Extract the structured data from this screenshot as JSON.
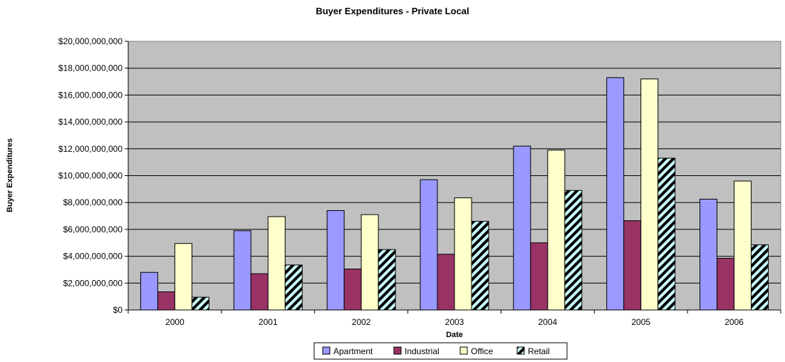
{
  "chart_data": {
    "type": "bar",
    "title": "Buyer Expenditures - Private Local",
    "xlabel": "Date",
    "ylabel": "Buyer Expenditures",
    "categories": [
      "2000",
      "2001",
      "2002",
      "2003",
      "2004",
      "2005",
      "2006"
    ],
    "ylim": [
      0,
      20000000000
    ],
    "yticks": [
      0,
      2000000000,
      4000000000,
      6000000000,
      8000000000,
      10000000000,
      12000000000,
      14000000000,
      16000000000,
      18000000000,
      20000000000
    ],
    "ytick_labels": [
      "$0",
      "$2,000,000,000",
      "$4,000,000,000",
      "$6,000,000,000",
      "$8,000,000,000",
      "$10,000,000,000",
      "$12,000,000,000",
      "$14,000,000,000",
      "$16,000,000,000",
      "$18,000,000,000",
      "$20,000,000,000"
    ],
    "grid": true,
    "legend_position": "bottom",
    "series": [
      {
        "name": "Apartment",
        "color": "#9999ff",
        "pattern": "solid",
        "values": [
          2800000000,
          5900000000,
          7400000000,
          9700000000,
          12200000000,
          17300000000,
          8250000000
        ]
      },
      {
        "name": "Industrial",
        "color": "#993366",
        "pattern": "solid",
        "values": [
          1350000000,
          2700000000,
          3050000000,
          4150000000,
          5000000000,
          6650000000,
          3850000000
        ]
      },
      {
        "name": "Office",
        "color": "#ffffcc",
        "pattern": "solid",
        "values": [
          4950000000,
          6950000000,
          7100000000,
          8350000000,
          11900000000,
          17200000000,
          9600000000
        ]
      },
      {
        "name": "Retail",
        "color": "#ccffff",
        "pattern": "diagonal-stripes",
        "values": [
          950000000,
          3350000000,
          4500000000,
          6600000000,
          8900000000,
          11300000000,
          4850000000
        ]
      }
    ],
    "plot_background": "#c0c0c0"
  }
}
